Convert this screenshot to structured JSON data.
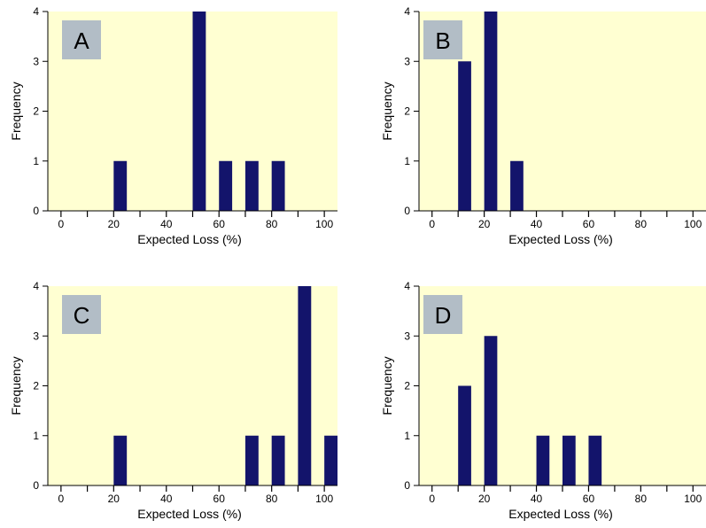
{
  "colors": {
    "plot_background": "#FFFFD2",
    "bar": "#13146B",
    "letter_box": "#B2BDC6",
    "axis": "#000000"
  },
  "chart_data": [
    {
      "type": "bar",
      "panel_label": "A",
      "xlabel": "Expected Loss (%)",
      "ylabel": "Frequency",
      "xlim": [
        -5,
        105
      ],
      "ylim": [
        0,
        4
      ],
      "xticks": [
        "0",
        "20",
        "40",
        "60",
        "80",
        "100"
      ],
      "yticks": [
        "0",
        "1",
        "2",
        "3",
        "4"
      ],
      "bar_width": 5,
      "x": [
        22.5,
        52.5,
        62.5,
        72.5,
        82.5
      ],
      "values": [
        1,
        4,
        1,
        1,
        1
      ]
    },
    {
      "type": "bar",
      "panel_label": "B",
      "xlabel": "Expected Loss (%)",
      "ylabel": "Frequency",
      "xlim": [
        -5,
        105
      ],
      "ylim": [
        0,
        4
      ],
      "xticks": [
        "0",
        "20",
        "40",
        "60",
        "80",
        "100"
      ],
      "yticks": [
        "0",
        "1",
        "2",
        "3",
        "4"
      ],
      "bar_width": 5,
      "x": [
        12.5,
        22.5,
        32.5
      ],
      "values": [
        3,
        4,
        1
      ]
    },
    {
      "type": "bar",
      "panel_label": "C",
      "xlabel": "Expected Loss (%)",
      "ylabel": "Frequency",
      "xlim": [
        -5,
        105
      ],
      "ylim": [
        0,
        4
      ],
      "xticks": [
        "0",
        "20",
        "40",
        "60",
        "80",
        "100"
      ],
      "yticks": [
        "0",
        "1",
        "2",
        "3",
        "4"
      ],
      "bar_width": 5,
      "x": [
        22.5,
        72.5,
        82.5,
        92.5,
        102.5
      ],
      "values": [
        1,
        1,
        1,
        4,
        1
      ]
    },
    {
      "type": "bar",
      "panel_label": "D",
      "xlabel": "Expected Loss (%)",
      "ylabel": "Frequency",
      "xlim": [
        -5,
        105
      ],
      "ylim": [
        0,
        4
      ],
      "xticks": [
        "0",
        "20",
        "40",
        "60",
        "80",
        "100"
      ],
      "yticks": [
        "0",
        "1",
        "2",
        "3",
        "4"
      ],
      "bar_width": 5,
      "x": [
        12.5,
        22.5,
        42.5,
        52.5,
        62.5
      ],
      "values": [
        2,
        3,
        1,
        1,
        1
      ]
    }
  ]
}
